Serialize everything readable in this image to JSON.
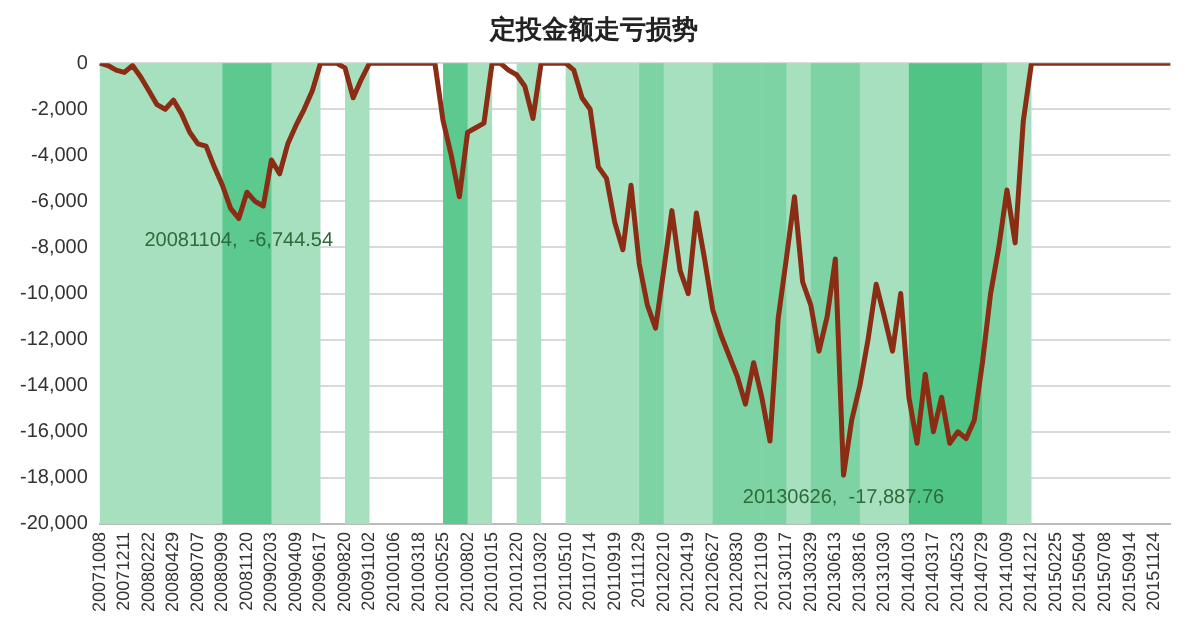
{
  "chart_data": {
    "type": "line",
    "title": "定投金额走亏损势",
    "categories": [
      "20071008",
      null,
      null,
      "20071211",
      null,
      null,
      "20080222",
      null,
      null,
      "20080429",
      null,
      null,
      "20080707",
      null,
      null,
      "20080909",
      null,
      null,
      "20081120",
      null,
      null,
      "20090203",
      null,
      null,
      "20090409",
      null,
      null,
      "20090617",
      null,
      null,
      "20090820",
      null,
      null,
      "20091102",
      null,
      null,
      "20100106",
      null,
      null,
      "20100318",
      null,
      null,
      "20100525",
      null,
      null,
      "20100802",
      null,
      null,
      "20101015",
      null,
      null,
      "20101220",
      null,
      null,
      "20110302",
      null,
      null,
      "20110510",
      null,
      null,
      "20110714",
      null,
      null,
      "20110919",
      null,
      null,
      "20111129",
      null,
      null,
      "20120210",
      null,
      null,
      "20120419",
      null,
      null,
      "20120627",
      null,
      null,
      "20120830",
      null,
      null,
      "20121109",
      null,
      null,
      "20130117",
      null,
      null,
      "20130329",
      null,
      null,
      "20130613",
      null,
      null,
      "20130816",
      null,
      null,
      "20131030",
      null,
      null,
      "20140103",
      null,
      null,
      "20140317",
      null,
      null,
      "20140523",
      null,
      null,
      "20140729",
      null,
      null,
      "20141009",
      null,
      null,
      "20141212",
      null,
      null,
      "20150225",
      null,
      null,
      "20150504",
      null,
      null,
      "20150708",
      null,
      null,
      "20150914",
      null,
      null,
      "20151124",
      null,
      null
    ],
    "series": [
      {
        "color": "#8b2c14",
        "values": [
          0,
          -100,
          -300,
          -400,
          -100,
          -600,
          -1200,
          -1800,
          -2000,
          -1600,
          -2200,
          -3000,
          -3500,
          -3600,
          -4500,
          -5300,
          -6300,
          -6744.54,
          -5600,
          -6000,
          -6200,
          -4200,
          -4800,
          -3500,
          -2700,
          -2000,
          -1200,
          0,
          0,
          0,
          -200,
          -1500,
          -700,
          0,
          0,
          0,
          0,
          0,
          0,
          0,
          0,
          0,
          -2500,
          -4000,
          -5800,
          -3000,
          -2800,
          -2600,
          0,
          0,
          -300,
          -500,
          -1000,
          -2400,
          0,
          0,
          0,
          0,
          -300,
          -1500,
          -2000,
          -4500,
          -5000,
          -6900,
          -8100,
          -5300,
          -8700,
          -10500,
          -11500,
          -9000,
          -6400,
          -9000,
          -10000,
          -6500,
          -8500,
          -10700,
          -11800,
          -12700,
          -13600,
          -14800,
          -13000,
          -14500,
          -16400,
          -11100,
          -8500,
          -5800,
          -9500,
          -10500,
          -12500,
          -11000,
          -8500,
          -17887.76,
          -15500,
          -14000,
          -12000,
          -9600,
          -11000,
          -12500,
          -10000,
          -14500,
          -16500,
          -13500,
          -16000,
          -14500,
          -16500,
          -16000,
          -16300,
          -15500,
          -13000,
          -10000,
          -8000,
          -5500,
          -7800,
          -2500,
          0,
          0,
          0,
          0,
          0,
          0,
          0,
          0,
          0,
          0,
          0,
          0,
          0,
          0,
          0,
          0,
          0,
          0
        ]
      }
    ],
    "ylim": [
      -20000,
      0
    ],
    "yticks": [
      {
        "value": -20000,
        "label": "-20,000"
      },
      {
        "value": -18000,
        "label": "-18,000"
      },
      {
        "value": -16000,
        "label": "-16,000"
      },
      {
        "value": -14000,
        "label": "-14,000"
      },
      {
        "value": -12000,
        "label": "-12,000"
      },
      {
        "value": -10000,
        "label": "-10,000"
      },
      {
        "value": -8000,
        "label": "-8,000"
      },
      {
        "value": -6000,
        "label": "-6,000"
      },
      {
        "value": -4000,
        "label": "-4,000"
      },
      {
        "value": -2000,
        "label": "-2,000"
      },
      {
        "value": 0,
        "label": "0"
      }
    ],
    "grid": "y",
    "legend": false,
    "marker": "none",
    "line_style": "solid",
    "bands": [
      {
        "axis": "x",
        "from": "20071008",
        "to": "20090617",
        "color": "#a6e0bf"
      },
      {
        "axis": "x",
        "from": "20080909",
        "to": "20090203",
        "color": "#5cc98e"
      },
      {
        "axis": "x",
        "from": "20090820",
        "to": "20091102",
        "color": "#a6e0bf"
      },
      {
        "axis": "x",
        "from": "20100525",
        "to": "20101015",
        "color": "#a6e0bf"
      },
      {
        "axis": "x",
        "from": "20100525",
        "to": "20100802",
        "color": "#5cc98e"
      },
      {
        "axis": "x",
        "from": "20101220",
        "to": "20110302",
        "color": "#a6e0bf"
      },
      {
        "axis": "x",
        "from": "20110510",
        "to": "20141212",
        "color": "#a6e0bf"
      },
      {
        "axis": "x",
        "from": "20111129",
        "to": "20120210",
        "color": "#7dd3a3"
      },
      {
        "axis": "x",
        "from": "20120627",
        "to": "20121109",
        "color": "#7dd3a3"
      },
      {
        "axis": "x",
        "from": "20121109",
        "to": "20130117",
        "color": "#7dd3a3"
      },
      {
        "axis": "x",
        "from": "20130329",
        "to": "20130816",
        "color": "#7dd3a3"
      },
      {
        "axis": "x",
        "from": "20140103",
        "to": "20140729",
        "color": "#4fc484"
      },
      {
        "axis": "x",
        "from": "20140729",
        "to": "20141009",
        "color": "#7dd3a3"
      }
    ],
    "annotations": [
      {
        "text": "20081104,  -6,744.54",
        "y": -6744.54
      },
      {
        "text": "20130626,  -17,887.76",
        "y": -17887.76
      }
    ]
  }
}
